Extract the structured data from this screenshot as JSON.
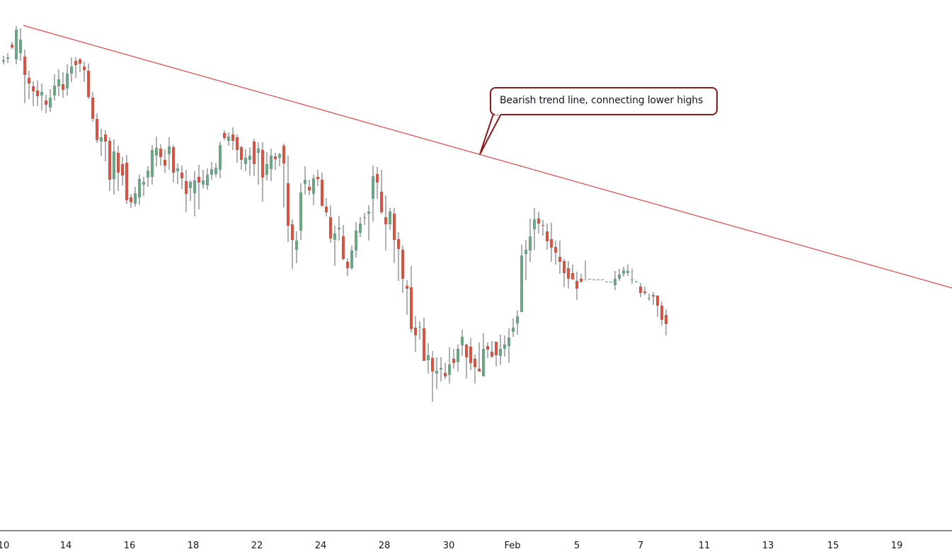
{
  "chart_data": {
    "type": "candlestick",
    "title": "",
    "xlabel": "",
    "ylabel": "",
    "grid": false,
    "ylim": [
      0,
      750
    ],
    "x_ticks": [
      "10",
      "14",
      "16",
      "18",
      "22",
      "24",
      "28",
      "30",
      "Feb",
      "5",
      "7",
      "11",
      "13",
      "15",
      "19"
    ],
    "series": [
      {
        "name": "price",
        "candles": [
          [
            663,
            665,
            671,
            659
          ],
          [
            667,
            669,
            675,
            661
          ],
          [
            687,
            683,
            691,
            681
          ],
          [
            666,
            708,
            713,
            659
          ],
          [
            675,
            694,
            710,
            664
          ],
          [
            670,
            644,
            680,
            604
          ],
          [
            640,
            632,
            650,
            610
          ],
          [
            628,
            621,
            635,
            600
          ],
          [
            622,
            614,
            636,
            600
          ],
          [
            615,
            620,
            632,
            594
          ],
          [
            608,
            602,
            616,
            590
          ],
          [
            598,
            612,
            624,
            592
          ],
          [
            615,
            629,
            645,
            608
          ],
          [
            628,
            638,
            652,
            614
          ],
          [
            631,
            623,
            648,
            612
          ],
          [
            625,
            646,
            659,
            615
          ],
          [
            646,
            656,
            669,
            634
          ],
          [
            664,
            658,
            669,
            640
          ],
          [
            666,
            660,
            668,
            648
          ],
          [
            656,
            651,
            663,
            634
          ],
          [
            650,
            613,
            660,
            610
          ],
          [
            612,
            582,
            620,
            578
          ],
          [
            582,
            552,
            590,
            548
          ],
          [
            550,
            556,
            568,
            530
          ],
          [
            560,
            550,
            566,
            522
          ],
          [
            551,
            496,
            556,
            480
          ],
          [
            497,
            536,
            553,
            475
          ],
          [
            534,
            506,
            544,
            480
          ],
          [
            518,
            502,
            528,
            488
          ],
          [
            520,
            467,
            531,
            462
          ],
          [
            471,
            464,
            476,
            456
          ],
          [
            462,
            477,
            486,
            458
          ],
          [
            471,
            497,
            503,
            460
          ],
          [
            489,
            493,
            500,
            473
          ],
          [
            499,
            509,
            515,
            486
          ],
          [
            500,
            538,
            545,
            489
          ],
          [
            530,
            541,
            557,
            515
          ],
          [
            540,
            528,
            546,
            516
          ],
          [
            524,
            516,
            539,
            506
          ],
          [
            532,
            543,
            556,
            510
          ],
          [
            542,
            506,
            545,
            492
          ],
          [
            508,
            512,
            519,
            490
          ],
          [
            506,
            498,
            516,
            483
          ],
          [
            494,
            476,
            510,
            450
          ],
          [
            484,
            493,
            495,
            466
          ],
          [
            477,
            495,
            508,
            444
          ],
          [
            500,
            492,
            517,
            454
          ],
          [
            489,
            495,
            510,
            484
          ],
          [
            488,
            503,
            512,
            482
          ],
          [
            503,
            511,
            521,
            496
          ],
          [
            504,
            513,
            520,
            500
          ],
          [
            510,
            545,
            550,
            498
          ],
          [
            562,
            555,
            566,
            552
          ],
          [
            551,
            557,
            563,
            544
          ],
          [
            560,
            551,
            570,
            538
          ],
          [
            556,
            538,
            560,
            520
          ],
          [
            542,
            524,
            544,
            510
          ],
          [
            518,
            527,
            539,
            508
          ],
          [
            524,
            530,
            542,
            502
          ],
          [
            550,
            518,
            554,
            501
          ],
          [
            534,
            540,
            549,
            489
          ],
          [
            538,
            499,
            549,
            465
          ],
          [
            503,
            518,
            535,
            495
          ],
          [
            511,
            530,
            540,
            494
          ],
          [
            529,
            525,
            534,
            510
          ],
          [
            527,
            532,
            534,
            515
          ],
          [
            544,
            519,
            547,
            457
          ],
          [
            491,
            431,
            530,
            408
          ],
          [
            433,
            411,
            440,
            370
          ],
          [
            397,
            410,
            423,
            378
          ],
          [
            424,
            478,
            491,
            411
          ],
          [
            490,
            496,
            515,
            475
          ],
          [
            486,
            481,
            496,
            474
          ],
          [
            476,
            498,
            503,
            460
          ],
          [
            500,
            497,
            510,
            487
          ],
          [
            496,
            459,
            506,
            458
          ],
          [
            458,
            450,
            470,
            444
          ],
          [
            443,
            413,
            460,
            407
          ],
          [
            411,
            420,
            431,
            374
          ],
          [
            426,
            428,
            445,
            410
          ],
          [
            416,
            384,
            432,
            382
          ],
          [
            380,
            371,
            385,
            360
          ],
          [
            371,
            396,
            403,
            369
          ],
          [
            396,
            424,
            436,
            386
          ],
          [
            421,
            434,
            443,
            415
          ],
          [
            442,
            443,
            449,
            432
          ],
          [
            448,
            451,
            460,
            410
          ],
          [
            469,
            501,
            516,
            437
          ],
          [
            504,
            492,
            514,
            469
          ],
          [
            479,
            450,
            510,
            448
          ],
          [
            443,
            433,
            474,
            396
          ],
          [
            433,
            451,
            456,
            425
          ],
          [
            448,
            411,
            456,
            378
          ],
          [
            412,
            398,
            422,
            353
          ],
          [
            397,
            356,
            403,
            336
          ],
          [
            346,
            342,
            354,
            305
          ],
          [
            344,
            285,
            374,
            280
          ],
          [
            287,
            276,
            303,
            253
          ],
          [
            287,
            288,
            296,
            270
          ],
          [
            286,
            240,
            301,
            240
          ],
          [
            241,
            248,
            265,
            222
          ],
          [
            244,
            225,
            254,
            182
          ],
          [
            222,
            226,
            245,
            200
          ],
          [
            228,
            230,
            245,
            211
          ],
          [
            223,
            218,
            237,
            214
          ],
          [
            220,
            235,
            259,
            208
          ],
          [
            243,
            237,
            257,
            229
          ],
          [
            238,
            257,
            263,
            225
          ],
          [
            262,
            274,
            284,
            247
          ],
          [
            263,
            245,
            264,
            215
          ],
          [
            260,
            237,
            272,
            227
          ],
          [
            243,
            231,
            249,
            208
          ],
          [
            229,
            225,
            266,
            227
          ],
          [
            218,
            257,
            279,
            219
          ],
          [
            261,
            256,
            266,
            244
          ],
          [
            253,
            246,
            268,
            244
          ],
          [
            267,
            248,
            267,
            232
          ],
          [
            247,
            257,
            277,
            234
          ],
          [
            257,
            263,
            276,
            246
          ],
          [
            261,
            273,
            286,
            237
          ],
          [
            281,
            287,
            300,
            274
          ],
          [
            293,
            303,
            311,
            277
          ],
          [
            309,
            389,
            404,
            344
          ],
          [
            391,
            397,
            411,
            354
          ],
          [
            396,
            416,
            441,
            380
          ],
          [
            426,
            440,
            456,
            397
          ],
          [
            441,
            434,
            451,
            420
          ],
          [
            432,
            431,
            439,
            417
          ],
          [
            423,
            409,
            434,
            397
          ],
          [
            412,
            400,
            435,
            380
          ],
          [
            401,
            393,
            410,
            376
          ],
          [
            387,
            380,
            410,
            363
          ],
          [
            381,
            364,
            384,
            344
          ],
          [
            371,
            356,
            381,
            342
          ],
          [
            364,
            355,
            376,
            355
          ],
          [
            353,
            342,
            366,
            326
          ],
          [
            356,
            352,
            363,
            350
          ],
          [
            355,
            355,
            382,
            356
          ],
          [
            356,
            356,
            356,
            356
          ],
          [
            355,
            355,
            355,
            355
          ],
          [
            355,
            355,
            355,
            355
          ],
          [
            354,
            355,
            355,
            355
          ],
          [
            352,
            352,
            352,
            352
          ],
          [
            352,
            352,
            352,
            352
          ],
          [
            347,
            356,
            367,
            340
          ],
          [
            356,
            362,
            370,
            353
          ],
          [
            363,
            368,
            373,
            359
          ],
          [
            364,
            367,
            376,
            360
          ],
          [
            354,
            355,
            370,
            349
          ],
          [
            352,
            352,
            353,
            352
          ],
          [
            345,
            336,
            350,
            330
          ],
          [
            338,
            336,
            345,
            333
          ],
          [
            328,
            329,
            335,
            325
          ],
          [
            333,
            331,
            337,
            319
          ],
          [
            332,
            318,
            333,
            302
          ],
          [
            318,
            298,
            324,
            290
          ],
          [
            305,
            292,
            313,
            276
          ]
        ]
      }
    ],
    "trendline": {
      "label": "Bearish trend line, connecting lower highs"
    },
    "annotations": [
      "Bearish trend line, connecting lower highs"
    ]
  },
  "colors": {
    "up": "#6ba583",
    "down": "#d75442",
    "wick": "#5d606b",
    "trendline": "#e8434a",
    "callout_border": "#8b1a1a",
    "axis": "#131722"
  }
}
